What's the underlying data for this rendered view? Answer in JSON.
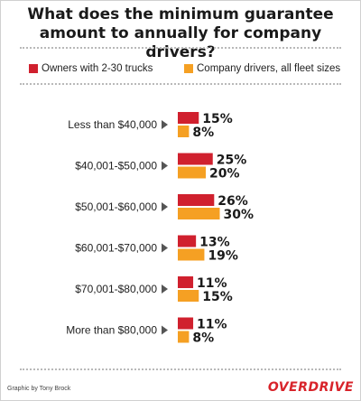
{
  "title_lines": [
    "What does the minimum guarantee",
    "amount to annually for company drivers?"
  ],
  "legend": [
    {
      "label": "Owners with 2-30 trucks",
      "color": "#d0202e"
    },
    {
      "label": "Company drivers, all fleet sizes",
      "color": "#f5a023"
    }
  ],
  "chart_data": {
    "type": "bar",
    "orientation": "horizontal",
    "title": "What does the minimum guarantee amount to annually for company drivers?",
    "categories": [
      "Less than $40,000",
      "$40,001-$50,000",
      "$50,001-$60,000",
      "$60,001-$70,000",
      "$70,001-$80,000",
      "More than $80,000"
    ],
    "series": [
      {
        "name": "Owners with 2-30 trucks",
        "color": "#d0202e",
        "values": [
          15,
          25,
          26,
          13,
          11,
          11
        ]
      },
      {
        "name": "Company drivers, all fleet sizes",
        "color": "#f5a023",
        "values": [
          8,
          20,
          30,
          19,
          15,
          8
        ]
      }
    ],
    "value_suffix": "%",
    "grid": false,
    "legend_position": "top"
  },
  "footer": {
    "credit": "Graphic by Tony Brock",
    "brand": "OVERDRIVE"
  }
}
